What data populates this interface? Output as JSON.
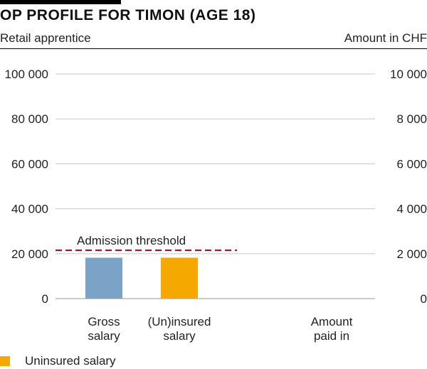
{
  "header": {
    "title": "OP PROFILE FOR TIMON (AGE 18)",
    "subtitle_left": "Retail apprentice",
    "subtitle_right": "Amount in CHF"
  },
  "chart_data": {
    "type": "bar",
    "categories": [
      "Gross\nsalary",
      "(Un)insured\nsalary",
      "Amount\npaid in"
    ],
    "left_axis": {
      "ylim": [
        0,
        100000
      ],
      "ticks": [
        "0",
        "20 000",
        "40 000",
        "60 000",
        "80 000",
        "100 000"
      ]
    },
    "right_axis": {
      "ylim": [
        0,
        10000
      ],
      "ticks": [
        "0",
        "2 000",
        "4 000",
        "6 000",
        "8 000",
        "10 000"
      ]
    },
    "bars": [
      {
        "category_index": 0,
        "value": 18200,
        "axis": "left",
        "color": "#7ba3c7"
      },
      {
        "category_index": 1,
        "value": 18200,
        "axis": "left",
        "color": "#f5a800"
      }
    ],
    "threshold": {
      "label": "Admission threshold",
      "value": 21510,
      "axis": "left",
      "color": "#9b1b30",
      "style": "dashed"
    },
    "grid": true,
    "legend": [
      {
        "label": "Uninsured salary",
        "color": "#f5a800"
      }
    ],
    "legend_position": "bottom-left"
  }
}
